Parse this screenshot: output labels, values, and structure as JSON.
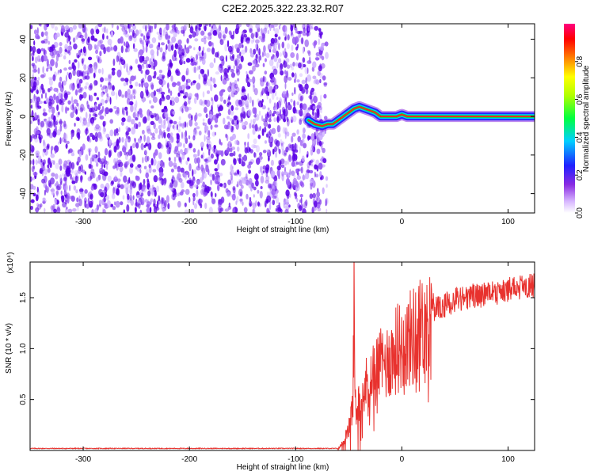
{
  "title": "C2E2.2025.322.23.32.R07",
  "colors": {
    "trace": "#e8322e",
    "noise_dense": "#5b00e6",
    "noise_light": "#c8a8ff",
    "frame": "#000000"
  },
  "chart_data": [
    {
      "type": "heatmap",
      "xlabel": "Height of straight line (km)",
      "ylabel": "Frequency (Hz)",
      "xlim": [
        -350,
        125
      ],
      "ylim": [
        -50,
        48
      ],
      "xticks": [
        -300,
        -200,
        -100,
        0,
        100
      ],
      "yticks": [
        -40,
        -20,
        0,
        20,
        40
      ],
      "noise_region": {
        "x_from": -350,
        "x_to": -75
      },
      "signal_trace": {
        "x": [
          -88,
          -82,
          -75,
          -70,
          -65,
          -60,
          -55,
          -50,
          -45,
          -40,
          -35,
          -30,
          -25,
          -20,
          -15,
          -10,
          -5,
          0,
          5,
          10,
          20,
          40,
          60,
          80,
          100,
          125
        ],
        "y": [
          -2,
          -4,
          -5,
          -4,
          -4,
          -2,
          0,
          2,
          4,
          5,
          4,
          3,
          2,
          0,
          0,
          0,
          0,
          1,
          0,
          0,
          0,
          0,
          0,
          0,
          0,
          0
        ]
      },
      "colorbar": {
        "label": "Normalized spectral amplitude",
        "range": [
          0,
          1
        ],
        "ticks": [
          "0.0",
          "0.2",
          "0.4",
          "0.6",
          "0.8"
        ]
      }
    },
    {
      "type": "line",
      "xlabel": "Height of straight line (km)",
      "ylabel": "SNR (10 * v/v)",
      "y_multiplier": "(x10⁴)",
      "xlim": [
        -350,
        125
      ],
      "ylim": [
        0,
        1.85
      ],
      "xticks": [
        -300,
        -200,
        -100,
        0,
        100
      ],
      "yticks": [
        "0.5",
        "1.0",
        "1.5"
      ],
      "ytick_values": [
        0.5,
        1.0,
        1.5
      ],
      "series": [
        {
          "x": [
            -350,
            -300,
            -250,
            -200,
            -150,
            -100,
            -60,
            -55,
            -50,
            -48,
            -46,
            -45,
            -44,
            -42,
            -40,
            -35,
            -30,
            -25,
            -20,
            -15,
            -10,
            -5,
            0,
            5,
            10,
            20,
            30,
            40,
            50,
            60,
            70,
            80,
            90,
            100,
            110,
            125
          ],
          "values": [
            0.02,
            0.02,
            0.02,
            0.02,
            0.02,
            0.02,
            0.02,
            0.1,
            0.25,
            0.4,
            0.55,
            1.75,
            0.55,
            0.45,
            0.6,
            0.75,
            0.85,
            0.95,
            1.0,
            1.05,
            1.1,
            1.2,
            1.25,
            1.3,
            1.35,
            1.45,
            1.5,
            1.55,
            1.6,
            1.62,
            1.65,
            1.65,
            1.68,
            1.7,
            1.72,
            1.75
          ]
        }
      ]
    }
  ]
}
